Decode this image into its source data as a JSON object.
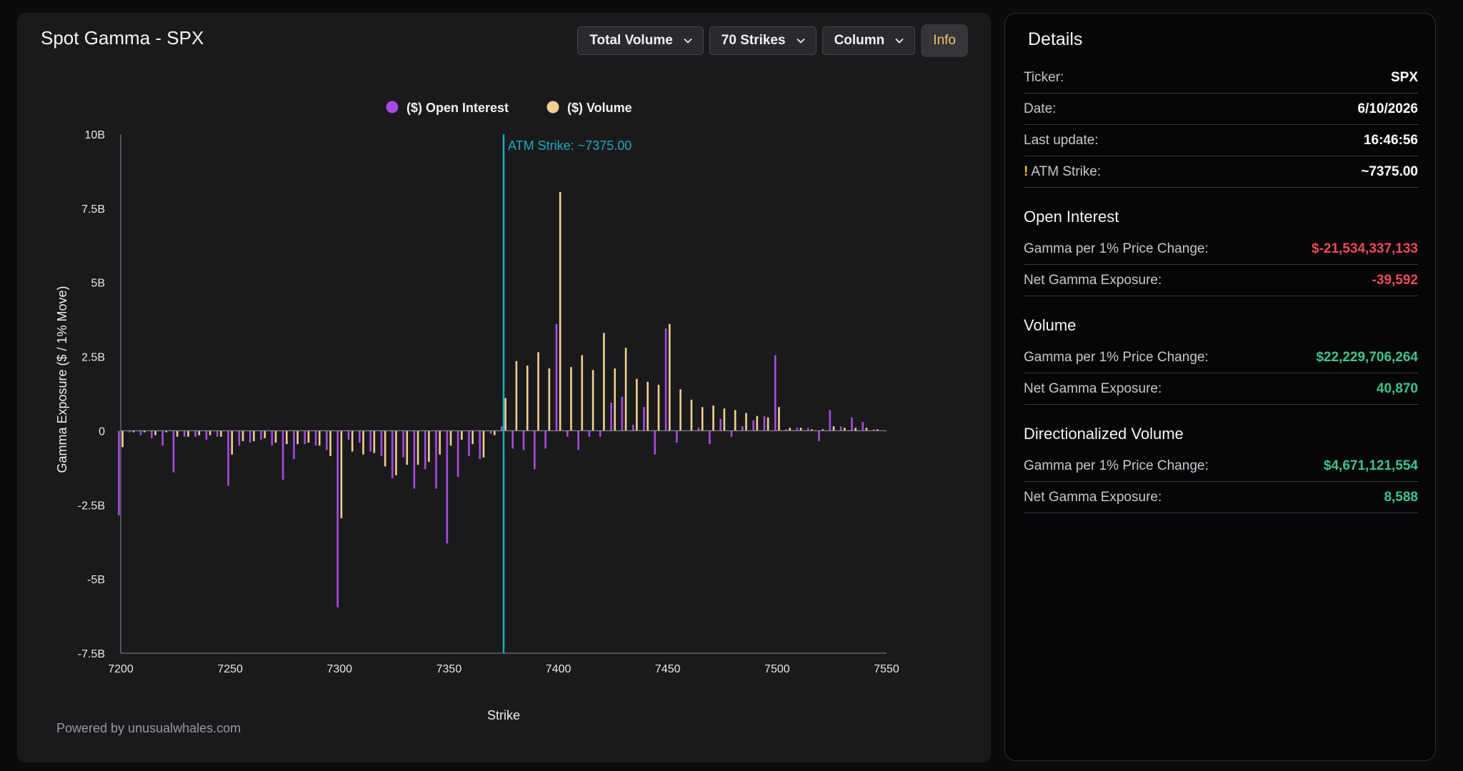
{
  "title": "Spot Gamma - SPX",
  "controls": {
    "volume_select": "Total Volume",
    "strikes_select": "70 Strikes",
    "chart_type_select": "Column",
    "info_button": "Info"
  },
  "footer": "Powered by unusualwhales.com",
  "colors": {
    "open_interest": "#a84be6",
    "volume": "#f2cf8e",
    "atm_line": "#20a9bb",
    "negative": "#ef4b59",
    "positive": "#3fc48c"
  },
  "chart_data": {
    "type": "bar",
    "legend": [
      "($) Open Interest",
      "($) Volume"
    ],
    "legend_position": "top-center",
    "xlabel": "Strike",
    "ylabel": "Gamma Exposure ($ / 1% Move)",
    "xlim": [
      7200,
      7550
    ],
    "ylim": [
      -7.5,
      10
    ],
    "y_unit": "B",
    "x_ticks": [
      "7200",
      "7250",
      "7300",
      "7350",
      "7400",
      "7450",
      "7500",
      "7550"
    ],
    "y_ticks": [
      {
        "value": 10,
        "label": "10B"
      },
      {
        "value": 7.5,
        "label": "7.5B"
      },
      {
        "value": 5,
        "label": "5B"
      },
      {
        "value": 2.5,
        "label": "2.5B"
      },
      {
        "value": 0,
        "label": "0"
      },
      {
        "value": -2.5,
        "label": "-2.5B"
      },
      {
        "value": -5,
        "label": "-5B"
      },
      {
        "value": -7.5,
        "label": "-7.5B"
      }
    ],
    "atm_annotation": {
      "strike": 7375,
      "label": "ATM Strike: ~7375.00"
    },
    "strikes": [
      7200,
      7205,
      7210,
      7215,
      7220,
      7225,
      7230,
      7235,
      7240,
      7245,
      7250,
      7255,
      7260,
      7265,
      7270,
      7275,
      7280,
      7285,
      7290,
      7295,
      7300,
      7305,
      7310,
      7315,
      7320,
      7325,
      7330,
      7335,
      7340,
      7345,
      7350,
      7355,
      7360,
      7365,
      7370,
      7375,
      7380,
      7385,
      7390,
      7395,
      7400,
      7405,
      7410,
      7415,
      7420,
      7425,
      7430,
      7435,
      7440,
      7445,
      7450,
      7455,
      7460,
      7465,
      7470,
      7475,
      7480,
      7485,
      7490,
      7495,
      7500,
      7505,
      7510,
      7515,
      7520,
      7525,
      7530,
      7535,
      7540,
      7545
    ],
    "series": [
      {
        "name": "($) Open Interest",
        "values": [
          -2.85,
          -0.05,
          -0.15,
          -0.25,
          -0.5,
          -1.4,
          -0.2,
          -0.2,
          -0.3,
          -0.2,
          -1.85,
          -0.5,
          -0.4,
          -0.3,
          -0.5,
          -1.65,
          -0.95,
          -0.45,
          -0.5,
          -0.65,
          -5.95,
          -0.3,
          -0.4,
          -0.7,
          -0.85,
          -1.6,
          -0.9,
          -1.95,
          -1.3,
          -1.95,
          -3.8,
          -1.55,
          -0.85,
          -0.95,
          -0.1,
          0.15,
          -0.6,
          -0.65,
          -1.3,
          -0.6,
          3.6,
          -0.2,
          -0.65,
          -0.2,
          -0.2,
          0.95,
          1.15,
          0.2,
          0.8,
          -0.8,
          3.45,
          -0.4,
          0.0,
          0.1,
          -0.45,
          0.4,
          -0.2,
          0.15,
          0.35,
          0.5,
          2.55,
          0.05,
          0.1,
          0.1,
          -0.35,
          0.7,
          0.15,
          0.45,
          0.3,
          0.05
        ]
      },
      {
        "name": "($) Volume",
        "values": [
          -0.55,
          -0.05,
          -0.05,
          -0.15,
          -0.05,
          -0.2,
          -0.2,
          -0.15,
          -0.15,
          -0.2,
          -0.8,
          -0.35,
          -0.35,
          -0.25,
          -0.4,
          -0.45,
          -0.45,
          -0.4,
          -0.5,
          -0.85,
          -2.95,
          -0.7,
          -0.8,
          -0.75,
          -1.2,
          -1.5,
          -1.15,
          -1.15,
          -1.05,
          -0.8,
          -0.5,
          -0.3,
          -0.45,
          -0.9,
          -0.15,
          1.1,
          2.35,
          2.2,
          2.65,
          2.1,
          8.05,
          2.15,
          2.55,
          2.05,
          3.3,
          2.1,
          2.8,
          1.75,
          1.65,
          1.55,
          3.6,
          1.4,
          1.05,
          0.8,
          0.85,
          0.75,
          0.7,
          0.6,
          0.5,
          0.45,
          0.8,
          0.1,
          0.1,
          0.05,
          0.05,
          0.15,
          0.1,
          0.1,
          0.1,
          0.05
        ]
      }
    ]
  },
  "details": {
    "title": "Details",
    "ticker_label": "Ticker:",
    "ticker_value": "SPX",
    "date_label": "Date:",
    "date_value": "6/10/2026",
    "update_label": "Last update:",
    "update_value": "16:46:56",
    "atm_warn": "!",
    "atm_label": "ATM Strike:",
    "atm_value": "~7375.00",
    "open_interest": {
      "title": "Open Interest",
      "gamma_label": "Gamma per 1% Price Change:",
      "gamma_value": "$-21,534,337,133",
      "net_label": "Net Gamma Exposure:",
      "net_value": "-39,592"
    },
    "volume": {
      "title": "Volume",
      "gamma_label": "Gamma per 1% Price Change:",
      "gamma_value": "$22,229,706,264",
      "net_label": "Net Gamma Exposure:",
      "net_value": "40,870"
    },
    "directionalized": {
      "title": "Directionalized Volume",
      "gamma_label": "Gamma per 1% Price Change:",
      "gamma_value": "$4,671,121,554",
      "net_label": "Net Gamma Exposure:",
      "net_value": "8,588"
    }
  }
}
